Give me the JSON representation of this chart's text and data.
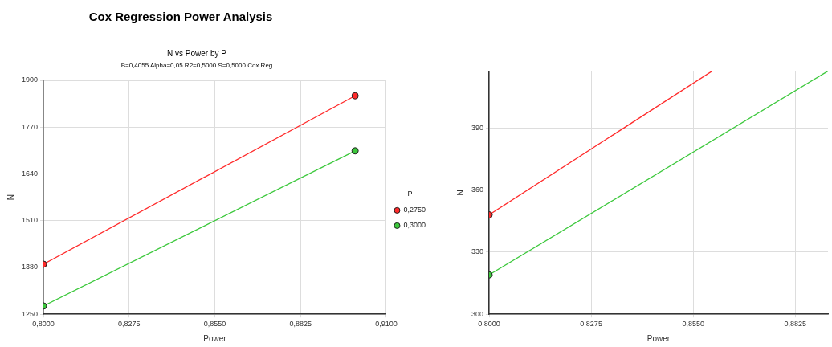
{
  "chart_data": [
    {
      "type": "line",
      "title": "Cox Regression Power Analysis",
      "subtitle": "N vs Power by P",
      "annotations": [
        "B=0,4055 Alpha=0,05 R2=0,5000 S=0,5000 Cox Reg"
      ],
      "xlabel": "Power",
      "ylabel": "N",
      "legend_title": "P",
      "legend": "right",
      "grid": true,
      "marker": "circle",
      "xlim": [
        0.8,
        0.91
      ],
      "xticks": [
        {
          "value": 0.8,
          "label": "0,8000"
        },
        {
          "value": 0.8275,
          "label": "0,8275"
        },
        {
          "value": 0.855,
          "label": "0,8550"
        },
        {
          "value": 0.8825,
          "label": "0,8825"
        },
        {
          "value": 0.91,
          "label": "0,9100"
        }
      ],
      "ylim": [
        1250,
        1900
      ],
      "yticks": [
        1250,
        1380,
        1510,
        1640,
        1770,
        1900
      ],
      "series": [
        {
          "name": "0,2750",
          "color": "#ff2a2a",
          "x": [
            0.8,
            0.9
          ],
          "values": [
            1389,
            1857
          ]
        },
        {
          "name": "0,3000",
          "color": "#3cc83c",
          "x": [
            0.8,
            0.9
          ],
          "values": [
            1273,
            1704
          ]
        }
      ]
    },
    {
      "type": "line",
      "xlabel": "Power",
      "ylabel": "N",
      "grid": true,
      "marker": "circle",
      "xlim": [
        0.8,
        0.8913
      ],
      "xticks": [
        {
          "value": 0.8,
          "label": "0,8000"
        },
        {
          "value": 0.8275,
          "label": "0,8275"
        },
        {
          "value": 0.855,
          "label": "0,8550"
        },
        {
          "value": 0.8825,
          "label": "0,8825"
        }
      ],
      "ylim": [
        300,
        417.5
      ],
      "yticks": [
        300,
        330,
        360,
        390
      ],
      "series": [
        {
          "color": "#ff2a2a",
          "x": [
            0.8,
            0.8601
          ],
          "values": [
            348,
            417.5
          ]
        },
        {
          "color": "#3cc83c",
          "x": [
            0.8,
            0.8913
          ],
          "values": [
            319,
            417.5
          ]
        }
      ]
    }
  ]
}
